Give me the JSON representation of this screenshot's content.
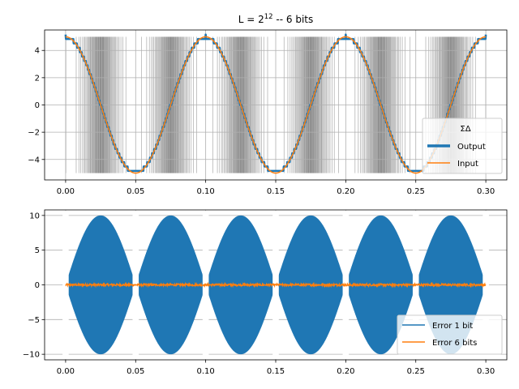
{
  "chart_data": [
    {
      "type": "line",
      "title_base": "L = 2",
      "title_exp": "12",
      "title_suffix": " -- 6 bits",
      "xlim": [
        -0.015,
        0.315
      ],
      "ylim": [
        -5.5,
        5.5
      ],
      "xticks": [
        0.0,
        0.05,
        0.1,
        0.15,
        0.2,
        0.25,
        0.3
      ],
      "xtick_labels": [
        "0.00",
        "0.05",
        "0.10",
        "0.15",
        "0.20",
        "0.25",
        "0.30"
      ],
      "yticks": [
        4,
        2,
        0,
        -2,
        -4
      ],
      "ytick_labels": [
        "4",
        "2",
        "0",
        "−2",
        "−4"
      ],
      "grid": true,
      "legend": {
        "title": "ΣΔ",
        "placement": "lower-right",
        "entries": [
          "Output",
          "Input"
        ]
      },
      "series": [
        {
          "name": "Output",
          "color": "#1f77b4",
          "function": "5*cos(2*pi*10*t)",
          "t_range": [
            0,
            0.3
          ],
          "quantized_6_bit": true
        },
        {
          "name": "Input",
          "color": "#ff7f0e",
          "function": "5*cos(2*pi*10*t)",
          "t_range": [
            0,
            0.3
          ]
        }
      ],
      "background_bitstream": {
        "color": "#000000",
        "levels": [
          -5,
          5
        ],
        "t_range": [
          0,
          0.3
        ]
      }
    },
    {
      "type": "line",
      "xlim": [
        -0.015,
        0.315
      ],
      "ylim": [
        -10.8,
        10.8
      ],
      "xticks": [
        0.0,
        0.05,
        0.1,
        0.15,
        0.2,
        0.25,
        0.3
      ],
      "xtick_labels": [
        "0.00",
        "0.05",
        "0.10",
        "0.15",
        "0.20",
        "0.25",
        "0.30"
      ],
      "yticks": [
        10,
        5,
        0,
        -5,
        -10
      ],
      "ytick_labels": [
        "10",
        "5",
        "0",
        "−5",
        "−10"
      ],
      "grid": true,
      "legend": {
        "placement": "lower-right",
        "entries": [
          "Error 1 bit",
          "Error 6 bits"
        ]
      },
      "series": [
        {
          "name": "Error 1 bit",
          "color": "#1f77b4",
          "envelope": "10*|sin(2*pi*10*t)|",
          "t_range": [
            0,
            0.3
          ]
        },
        {
          "name": "Error 6 bits",
          "color": "#ff7f0e",
          "approx_amplitude": 0.15,
          "t_range": [
            0,
            0.3
          ]
        }
      ]
    }
  ]
}
